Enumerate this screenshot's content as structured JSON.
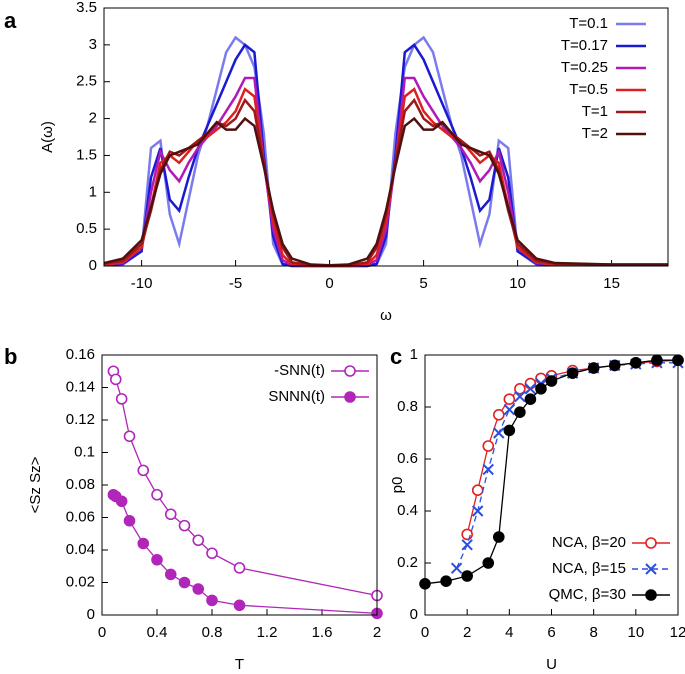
{
  "chart_data": [
    {
      "type": "line",
      "panel": "a",
      "xlabel": "ω",
      "ylabel": "A(ω)",
      "xlim": [
        -12,
        18
      ],
      "xticks": [
        -10,
        -5,
        0,
        5,
        10,
        15
      ],
      "ylim": [
        0,
        3.5
      ],
      "yticks": [
        0,
        0.5,
        1,
        1.5,
        2,
        2.5,
        3,
        3.5
      ],
      "legend": "top-right",
      "x": [
        -12,
        -11,
        -10,
        -9.5,
        -9,
        -8.5,
        -8,
        -7.5,
        -7,
        -6.5,
        -6,
        -5.5,
        -5,
        -4.5,
        -4,
        -3.5,
        -3,
        -2.5,
        -2,
        -1,
        0,
        1,
        2,
        2.5,
        3,
        3.5,
        4,
        4.5,
        5,
        5.5,
        6,
        6.5,
        7,
        7.5,
        8,
        8.5,
        9,
        9.5,
        10,
        11,
        12,
        15,
        18
      ],
      "series": [
        {
          "name": "T=0.1",
          "color": "#7b7bef",
          "values": [
            0.01,
            0.02,
            0.2,
            1.6,
            1.7,
            0.7,
            0.3,
            0.9,
            1.5,
            1.9,
            2.4,
            2.9,
            3.1,
            3.0,
            2.7,
            1.8,
            0.3,
            0.02,
            0,
            0,
            0,
            0,
            0,
            0.02,
            0.3,
            1.8,
            2.7,
            3.0,
            3.1,
            2.9,
            2.4,
            1.9,
            1.5,
            0.9,
            0.3,
            0.7,
            1.7,
            1.6,
            0.2,
            0.02,
            0.01,
            0.01,
            0.01
          ]
        },
        {
          "name": "T=0.17",
          "color": "#1a1ad0",
          "values": [
            0.01,
            0.03,
            0.2,
            1.2,
            1.6,
            0.9,
            0.75,
            1.2,
            1.6,
            1.9,
            2.2,
            2.5,
            2.8,
            3.0,
            2.9,
            1.5,
            0.4,
            0.03,
            0,
            0,
            0,
            0,
            0,
            0.03,
            0.4,
            1.5,
            2.9,
            3.0,
            2.8,
            2.5,
            2.2,
            1.9,
            1.6,
            1.2,
            0.75,
            0.9,
            1.6,
            1.2,
            0.2,
            0.03,
            0.01,
            0.01,
            0.01
          ]
        },
        {
          "name": "T=0.25",
          "color": "#b01ab8",
          "values": [
            0.02,
            0.04,
            0.25,
            1.0,
            1.55,
            1.3,
            1.15,
            1.4,
            1.6,
            1.75,
            1.9,
            2.1,
            2.3,
            2.55,
            2.55,
            1.4,
            0.5,
            0.08,
            0.01,
            0,
            0,
            0,
            0.01,
            0.08,
            0.5,
            1.4,
            2.55,
            2.55,
            2.3,
            2.1,
            1.9,
            1.75,
            1.6,
            1.4,
            1.15,
            1.3,
            1.55,
            1.0,
            0.25,
            0.04,
            0.02,
            0.01,
            0.01
          ]
        },
        {
          "name": "T=0.5",
          "color": "#e02020",
          "values": [
            0.02,
            0.05,
            0.25,
            0.8,
            1.4,
            1.5,
            1.4,
            1.55,
            1.7,
            1.75,
            1.85,
            1.95,
            2.1,
            2.4,
            2.3,
            1.4,
            0.6,
            0.15,
            0.02,
            0,
            0,
            0,
            0.02,
            0.15,
            0.6,
            1.4,
            2.3,
            2.4,
            2.1,
            1.95,
            1.85,
            1.75,
            1.7,
            1.55,
            1.4,
            1.5,
            1.4,
            0.8,
            0.25,
            0.05,
            0.02,
            0.01,
            0.01
          ]
        },
        {
          "name": "T=1",
          "color": "#a01818",
          "values": [
            0.03,
            0.07,
            0.3,
            0.75,
            1.3,
            1.55,
            1.5,
            1.6,
            1.7,
            1.8,
            1.95,
            1.9,
            2.0,
            2.25,
            2.1,
            1.4,
            0.7,
            0.25,
            0.05,
            0.01,
            0,
            0.01,
            0.05,
            0.25,
            0.7,
            1.4,
            2.1,
            2.25,
            2.0,
            1.9,
            1.95,
            1.8,
            1.7,
            1.6,
            1.5,
            1.55,
            1.3,
            0.75,
            0.3,
            0.07,
            0.03,
            0.02,
            0.02
          ]
        },
        {
          "name": "T=2",
          "color": "#501010",
          "values": [
            0.04,
            0.1,
            0.35,
            0.8,
            1.25,
            1.5,
            1.55,
            1.6,
            1.65,
            1.8,
            1.95,
            1.85,
            1.85,
            2.0,
            1.9,
            1.35,
            0.75,
            0.3,
            0.1,
            0.02,
            0.01,
            0.02,
            0.1,
            0.3,
            0.75,
            1.35,
            1.9,
            2.0,
            1.85,
            1.85,
            1.95,
            1.8,
            1.65,
            1.6,
            1.55,
            1.5,
            1.25,
            0.8,
            0.35,
            0.1,
            0.04,
            0.02,
            0.02
          ]
        }
      ]
    },
    {
      "type": "line",
      "panel": "b",
      "xlabel": "T",
      "ylabel": "<Sz Sz>",
      "xlim": [
        0,
        2
      ],
      "xticks": [
        0,
        0.4,
        0.8,
        1.2,
        1.6,
        2
      ],
      "ylim": [
        0,
        0.16
      ],
      "yticks": [
        0,
        0.02,
        0.04,
        0.06,
        0.08,
        0.1,
        0.12,
        0.14,
        0.16
      ],
      "legend": "top-right",
      "x": [
        0.083,
        0.1,
        0.143,
        0.2,
        0.3,
        0.4,
        0.5,
        0.6,
        0.7,
        0.8,
        1,
        2
      ],
      "series": [
        {
          "name": "-SNN(t)",
          "color": "#b026b8",
          "marker": "open-circle",
          "values": [
            0.15,
            0.145,
            0.133,
            0.11,
            0.089,
            0.074,
            0.062,
            0.055,
            0.046,
            0.038,
            0.029,
            0.012
          ]
        },
        {
          "name": "SNNN(t)",
          "color": "#b026b8",
          "marker": "filled-circle",
          "values": [
            0.074,
            0.073,
            0.07,
            0.058,
            0.044,
            0.034,
            0.025,
            0.02,
            0.016,
            0.009,
            0.006,
            0.001
          ]
        }
      ]
    },
    {
      "type": "line",
      "panel": "c",
      "xlabel": "U",
      "ylabel": "p0",
      "xlim": [
        0,
        12
      ],
      "xticks": [
        0,
        2,
        4,
        6,
        8,
        10,
        12
      ],
      "ylim": [
        0,
        1
      ],
      "yticks": [
        0,
        0.2,
        0.4,
        0.6,
        0.8,
        1
      ],
      "legend": "bottom-right",
      "series": [
        {
          "name": "NCA, β=20",
          "color": "#e02020",
          "marker": "open-circle",
          "x": [
            2,
            2.5,
            3,
            3.5,
            4,
            4.5,
            5,
            5.5,
            6,
            7,
            8,
            9,
            10,
            11,
            12
          ],
          "values": [
            0.31,
            0.48,
            0.65,
            0.77,
            0.83,
            0.87,
            0.89,
            0.91,
            0.92,
            0.94,
            0.95,
            0.96,
            0.97,
            0.975,
            0.98
          ]
        },
        {
          "name": "NCA, β=15",
          "color": "#2a4fe0",
          "marker": "x",
          "dash": true,
          "x": [
            1.5,
            2,
            2.5,
            3,
            3.5,
            4,
            4.5,
            5,
            5.5,
            6,
            7,
            8,
            9,
            10,
            11,
            12
          ],
          "values": [
            0.18,
            0.27,
            0.4,
            0.56,
            0.7,
            0.79,
            0.84,
            0.87,
            0.89,
            0.91,
            0.93,
            0.95,
            0.96,
            0.965,
            0.97,
            0.97
          ]
        },
        {
          "name": "QMC, β=30",
          "color": "#000000",
          "marker": "filled-circle",
          "x": [
            0,
            1,
            2,
            3,
            3.5,
            4,
            4.5,
            5,
            5.5,
            6,
            7,
            8,
            9,
            10,
            11,
            12
          ],
          "values": [
            0.12,
            0.13,
            0.15,
            0.2,
            0.3,
            0.71,
            0.78,
            0.83,
            0.87,
            0.9,
            0.93,
            0.95,
            0.96,
            0.97,
            0.98,
            0.98
          ]
        }
      ]
    }
  ]
}
